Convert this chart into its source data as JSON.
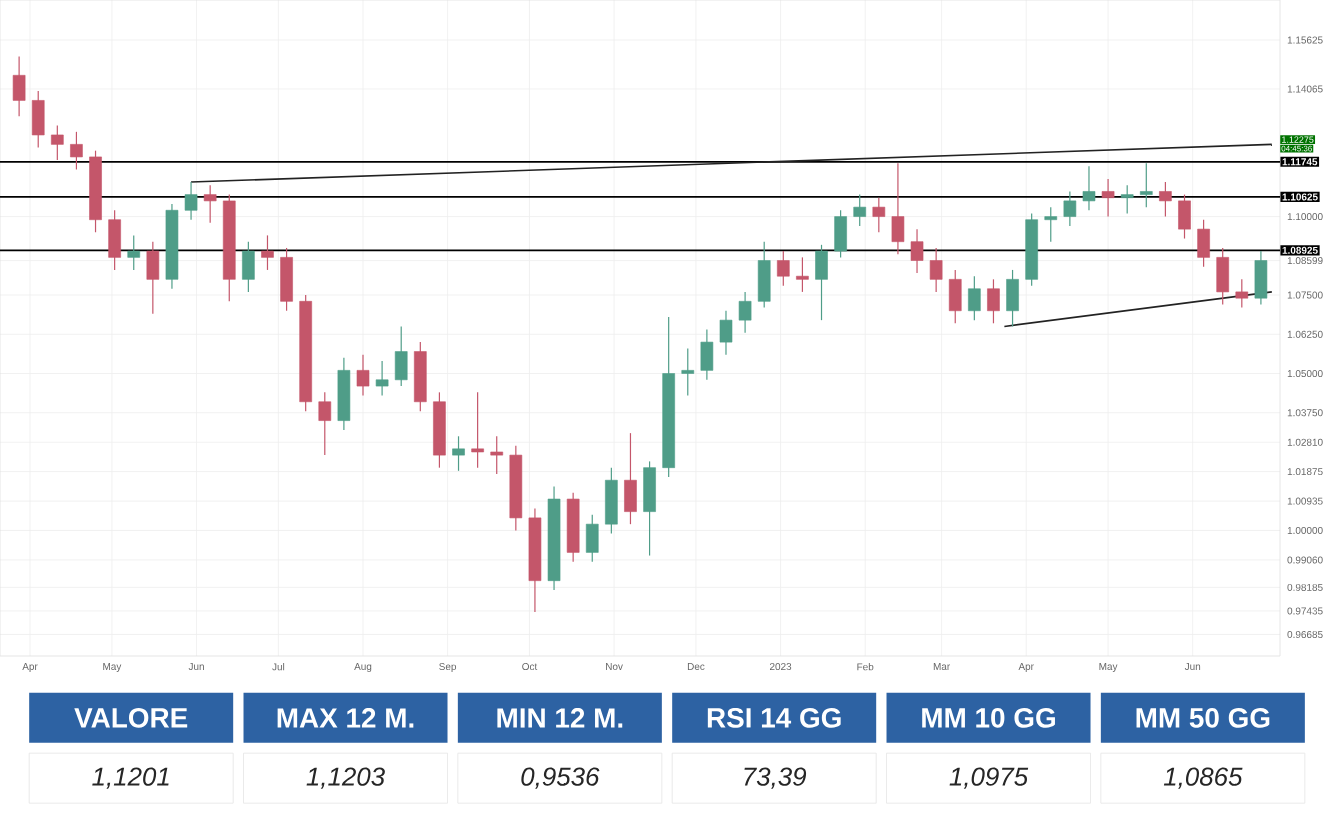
{
  "chart_data": [
    {
      "type": "candlestick",
      "x": [
        "2022-03-28",
        "2022-04-04",
        "2022-04-11",
        "2022-04-18",
        "2022-04-25",
        "2022-05-02",
        "2022-05-09",
        "2022-05-16",
        "2022-05-23",
        "2022-05-30",
        "2022-06-06",
        "2022-06-13",
        "2022-06-20",
        "2022-06-27",
        "2022-07-04",
        "2022-07-11",
        "2022-07-18",
        "2022-07-25",
        "2022-08-01",
        "2022-08-08",
        "2022-08-15",
        "2022-08-22",
        "2022-08-29",
        "2022-09-05",
        "2022-09-12",
        "2022-09-19",
        "2022-09-26",
        "2022-10-03",
        "2022-10-10",
        "2022-10-17",
        "2022-10-24",
        "2022-10-31",
        "2022-11-07",
        "2022-11-14",
        "2022-11-21",
        "2022-11-28",
        "2022-12-05",
        "2022-12-12",
        "2022-12-19",
        "2022-12-26",
        "2023-01-02",
        "2023-01-09",
        "2023-01-16",
        "2023-01-23",
        "2023-01-30",
        "2023-02-06",
        "2023-02-13",
        "2023-02-20",
        "2023-02-27",
        "2023-03-06",
        "2023-03-13",
        "2023-03-20",
        "2023-03-27",
        "2023-04-03",
        "2023-04-10",
        "2023-04-17",
        "2023-04-24",
        "2023-05-01",
        "2023-05-08",
        "2023-05-15",
        "2023-05-22",
        "2023-05-29",
        "2023-06-05",
        "2023-06-12",
        "2023-06-19",
        "2023-06-26"
      ],
      "ohlc": [
        [
          1.145,
          1.151,
          1.132,
          1.137
        ],
        [
          1.137,
          1.14,
          1.122,
          1.126
        ],
        [
          1.126,
          1.129,
          1.118,
          1.123
        ],
        [
          1.123,
          1.127,
          1.115,
          1.119
        ],
        [
          1.119,
          1.121,
          1.095,
          1.099
        ],
        [
          1.099,
          1.102,
          1.083,
          1.087
        ],
        [
          1.087,
          1.094,
          1.083,
          1.089
        ],
        [
          1.089,
          1.092,
          1.069,
          1.08
        ],
        [
          1.08,
          1.104,
          1.077,
          1.102
        ],
        [
          1.102,
          1.111,
          1.099,
          1.107
        ],
        [
          1.107,
          1.11,
          1.098,
          1.105
        ],
        [
          1.105,
          1.107,
          1.073,
          1.08
        ],
        [
          1.08,
          1.092,
          1.076,
          1.089
        ],
        [
          1.089,
          1.094,
          1.083,
          1.087
        ],
        [
          1.087,
          1.09,
          1.07,
          1.073
        ],
        [
          1.073,
          1.075,
          1.038,
          1.041
        ],
        [
          1.041,
          1.044,
          1.024,
          1.035
        ],
        [
          1.035,
          1.055,
          1.032,
          1.051
        ],
        [
          1.051,
          1.056,
          1.043,
          1.046
        ],
        [
          1.046,
          1.054,
          1.043,
          1.048
        ],
        [
          1.048,
          1.065,
          1.046,
          1.057
        ],
        [
          1.057,
          1.06,
          1.038,
          1.041
        ],
        [
          1.041,
          1.044,
          1.02,
          1.024
        ],
        [
          1.024,
          1.03,
          1.019,
          1.026
        ],
        [
          1.026,
          1.044,
          1.02,
          1.025
        ],
        [
          1.025,
          1.03,
          1.018,
          1.024
        ],
        [
          1.024,
          1.027,
          1.0,
          1.004
        ],
        [
          1.004,
          1.007,
          0.974,
          0.984
        ],
        [
          0.984,
          1.014,
          0.981,
          1.01
        ],
        [
          1.01,
          1.012,
          0.99,
          0.993
        ],
        [
          0.993,
          1.005,
          0.99,
          1.002
        ],
        [
          1.002,
          1.02,
          0.999,
          1.016
        ],
        [
          1.016,
          1.031,
          1.002,
          1.006
        ],
        [
          1.006,
          1.022,
          0.992,
          1.02
        ],
        [
          1.02,
          1.068,
          1.017,
          1.05
        ],
        [
          1.05,
          1.058,
          1.043,
          1.051
        ],
        [
          1.051,
          1.064,
          1.048,
          1.06
        ],
        [
          1.06,
          1.07,
          1.056,
          1.067
        ],
        [
          1.067,
          1.076,
          1.063,
          1.073
        ],
        [
          1.073,
          1.092,
          1.071,
          1.086
        ],
        [
          1.086,
          1.089,
          1.078,
          1.081
        ],
        [
          1.081,
          1.087,
          1.076,
          1.08
        ],
        [
          1.08,
          1.091,
          1.067,
          1.089
        ],
        [
          1.089,
          1.102,
          1.087,
          1.1
        ],
        [
          1.1,
          1.107,
          1.097,
          1.103
        ],
        [
          1.103,
          1.106,
          1.095,
          1.1
        ],
        [
          1.1,
          1.117,
          1.088,
          1.092
        ],
        [
          1.092,
          1.096,
          1.082,
          1.086
        ],
        [
          1.086,
          1.09,
          1.076,
          1.08
        ],
        [
          1.08,
          1.083,
          1.066,
          1.07
        ],
        [
          1.07,
          1.081,
          1.067,
          1.077
        ],
        [
          1.077,
          1.08,
          1.066,
          1.07
        ],
        [
          1.07,
          1.083,
          1.065,
          1.08
        ],
        [
          1.08,
          1.101,
          1.078,
          1.099
        ],
        [
          1.099,
          1.103,
          1.092,
          1.1
        ],
        [
          1.1,
          1.108,
          1.097,
          1.105
        ],
        [
          1.105,
          1.116,
          1.102,
          1.108
        ],
        [
          1.108,
          1.112,
          1.1,
          1.106
        ],
        [
          1.106,
          1.11,
          1.101,
          1.107
        ],
        [
          1.107,
          1.117,
          1.103,
          1.108
        ],
        [
          1.108,
          1.111,
          1.1,
          1.105
        ],
        [
          1.105,
          1.107,
          1.093,
          1.096
        ],
        [
          1.096,
          1.099,
          1.084,
          1.087
        ],
        [
          1.087,
          1.09,
          1.072,
          1.076
        ],
        [
          1.076,
          1.08,
          1.071,
          1.074
        ],
        [
          1.074,
          1.089,
          1.072,
          1.086
        ]
      ],
      "colors": [
        "#c4566a",
        "#c4566a",
        "#c4566a",
        "#c4566a",
        "#c4566a",
        "#c4566a",
        "#4f9d88",
        "#c4566a",
        "#4f9d88",
        "#4f9d88",
        "#c4566a",
        "#c4566a",
        "#4f9d88",
        "#c4566a",
        "#c4566a",
        "#c4566a",
        "#c4566a",
        "#4f9d88",
        "#c4566a",
        "#4f9d88",
        "#4f9d88",
        "#c4566a",
        "#c4566a",
        "#4f9d88",
        "#c4566a",
        "#c4566a",
        "#c4566a",
        "#c4566a",
        "#4f9d88",
        "#c4566a",
        "#4f9d88",
        "#4f9d88",
        "#c4566a",
        "#4f9d88",
        "#4f9d88",
        "#4f9d88",
        "#4f9d88",
        "#4f9d88",
        "#4f9d88",
        "#4f9d88",
        "#c4566a",
        "#c4566a",
        "#4f9d88",
        "#4f9d88",
        "#4f9d88",
        "#c4566a",
        "#c4566a",
        "#c4566a",
        "#c4566a",
        "#c4566a",
        "#4f9d88",
        "#c4566a",
        "#4f9d88",
        "#4f9d88",
        "#4f9d88",
        "#4f9d88",
        "#4f9d88",
        "#c4566a",
        "#4f9d88",
        "#4f9d88",
        "#c4566a",
        "#c4566a",
        "#c4566a",
        "#c4566a",
        "#c4566a",
        "#4f9d88"
      ],
      "series": [
        {
          "type": "line",
          "color": "#222222",
          "x": [
            "2022-05-30",
            "2023-06-30"
          ],
          "values": [
            1.111,
            1.123
          ]
        },
        {
          "type": "line",
          "color": "#222222",
          "x": [
            "2023-03-24",
            "2023-06-30"
          ],
          "values": [
            1.065,
            1.076
          ]
        }
      ],
      "xlim": [
        "2022-03-21",
        "2023-07-03"
      ],
      "xticks": [
        {
          "value": "2022-04-01",
          "label": "Apr"
        },
        {
          "value": "2022-05-01",
          "label": "May"
        },
        {
          "value": "2022-06-01",
          "label": "Jun"
        },
        {
          "value": "2022-07-01",
          "label": "Jul"
        },
        {
          "value": "2022-08-01",
          "label": "Aug"
        },
        {
          "value": "2022-09-01",
          "label": "Sep"
        },
        {
          "value": "2022-10-01",
          "label": "Oct"
        },
        {
          "value": "2022-11-01",
          "label": "Nov"
        },
        {
          "value": "2022-12-01",
          "label": "Dec"
        },
        {
          "value": "2023-01-01",
          "label": "2023"
        },
        {
          "value": "2023-02-01",
          "label": "Feb"
        },
        {
          "value": "2023-03-01",
          "label": "Mar"
        },
        {
          "value": "2023-04-01",
          "label": "Apr"
        },
        {
          "value": "2023-05-01",
          "label": "May"
        },
        {
          "value": "2023-06-01",
          "label": "Jun"
        }
      ],
      "ylim": [
        0.96,
        1.169
      ],
      "yticks": [
        {
          "value": 1.15625,
          "label": "1.15625"
        },
        {
          "value": 1.14065,
          "label": "1.14065"
        },
        {
          "value": 1.1,
          "label": "1.10000"
        },
        {
          "value": 1.08599,
          "label": "1.08599"
        },
        {
          "value": 1.075,
          "label": "1.07500"
        },
        {
          "value": 1.0625,
          "label": "1.06250"
        },
        {
          "value": 1.05,
          "label": "1.05000"
        },
        {
          "value": 1.0375,
          "label": "1.03750"
        },
        {
          "value": 1.0281,
          "label": "1.02810"
        },
        {
          "value": 1.01875,
          "label": "1.01875"
        },
        {
          "value": 1.00935,
          "label": "1.00935"
        },
        {
          "value": 1.0,
          "label": "1.00000"
        },
        {
          "value": 0.9906,
          "label": "0.99060"
        },
        {
          "value": 0.98185,
          "label": "0.98185"
        },
        {
          "value": 0.97435,
          "label": "0.97435"
        },
        {
          "value": 0.96685,
          "label": "0.96685"
        }
      ],
      "ref_lines": [
        {
          "axis": "y",
          "value": 1.11745,
          "label": "1.11745",
          "color": "#000000"
        },
        {
          "axis": "y",
          "value": 1.10625,
          "label": "1.10625",
          "color": "#000000"
        },
        {
          "axis": "y",
          "value": 1.08925,
          "label": "1.08925",
          "color": "#000000"
        }
      ],
      "annotations": [
        {
          "text": "1.12275",
          "x": "2023-06-30",
          "y": 1.123
        },
        "04:45:36"
      ],
      "grid": true
    },
    {
      "type": "other",
      "categories": [
        "VALORE",
        "MAX 12 M.",
        "MIN 12 M.",
        "RSI 14 GG",
        "MM 10 GG",
        "MM 50 GG"
      ],
      "value_labels": [
        "1,1201",
        "1,1203",
        "0,9536",
        "73,39",
        "1,0975",
        "1,0865"
      ]
    }
  ]
}
